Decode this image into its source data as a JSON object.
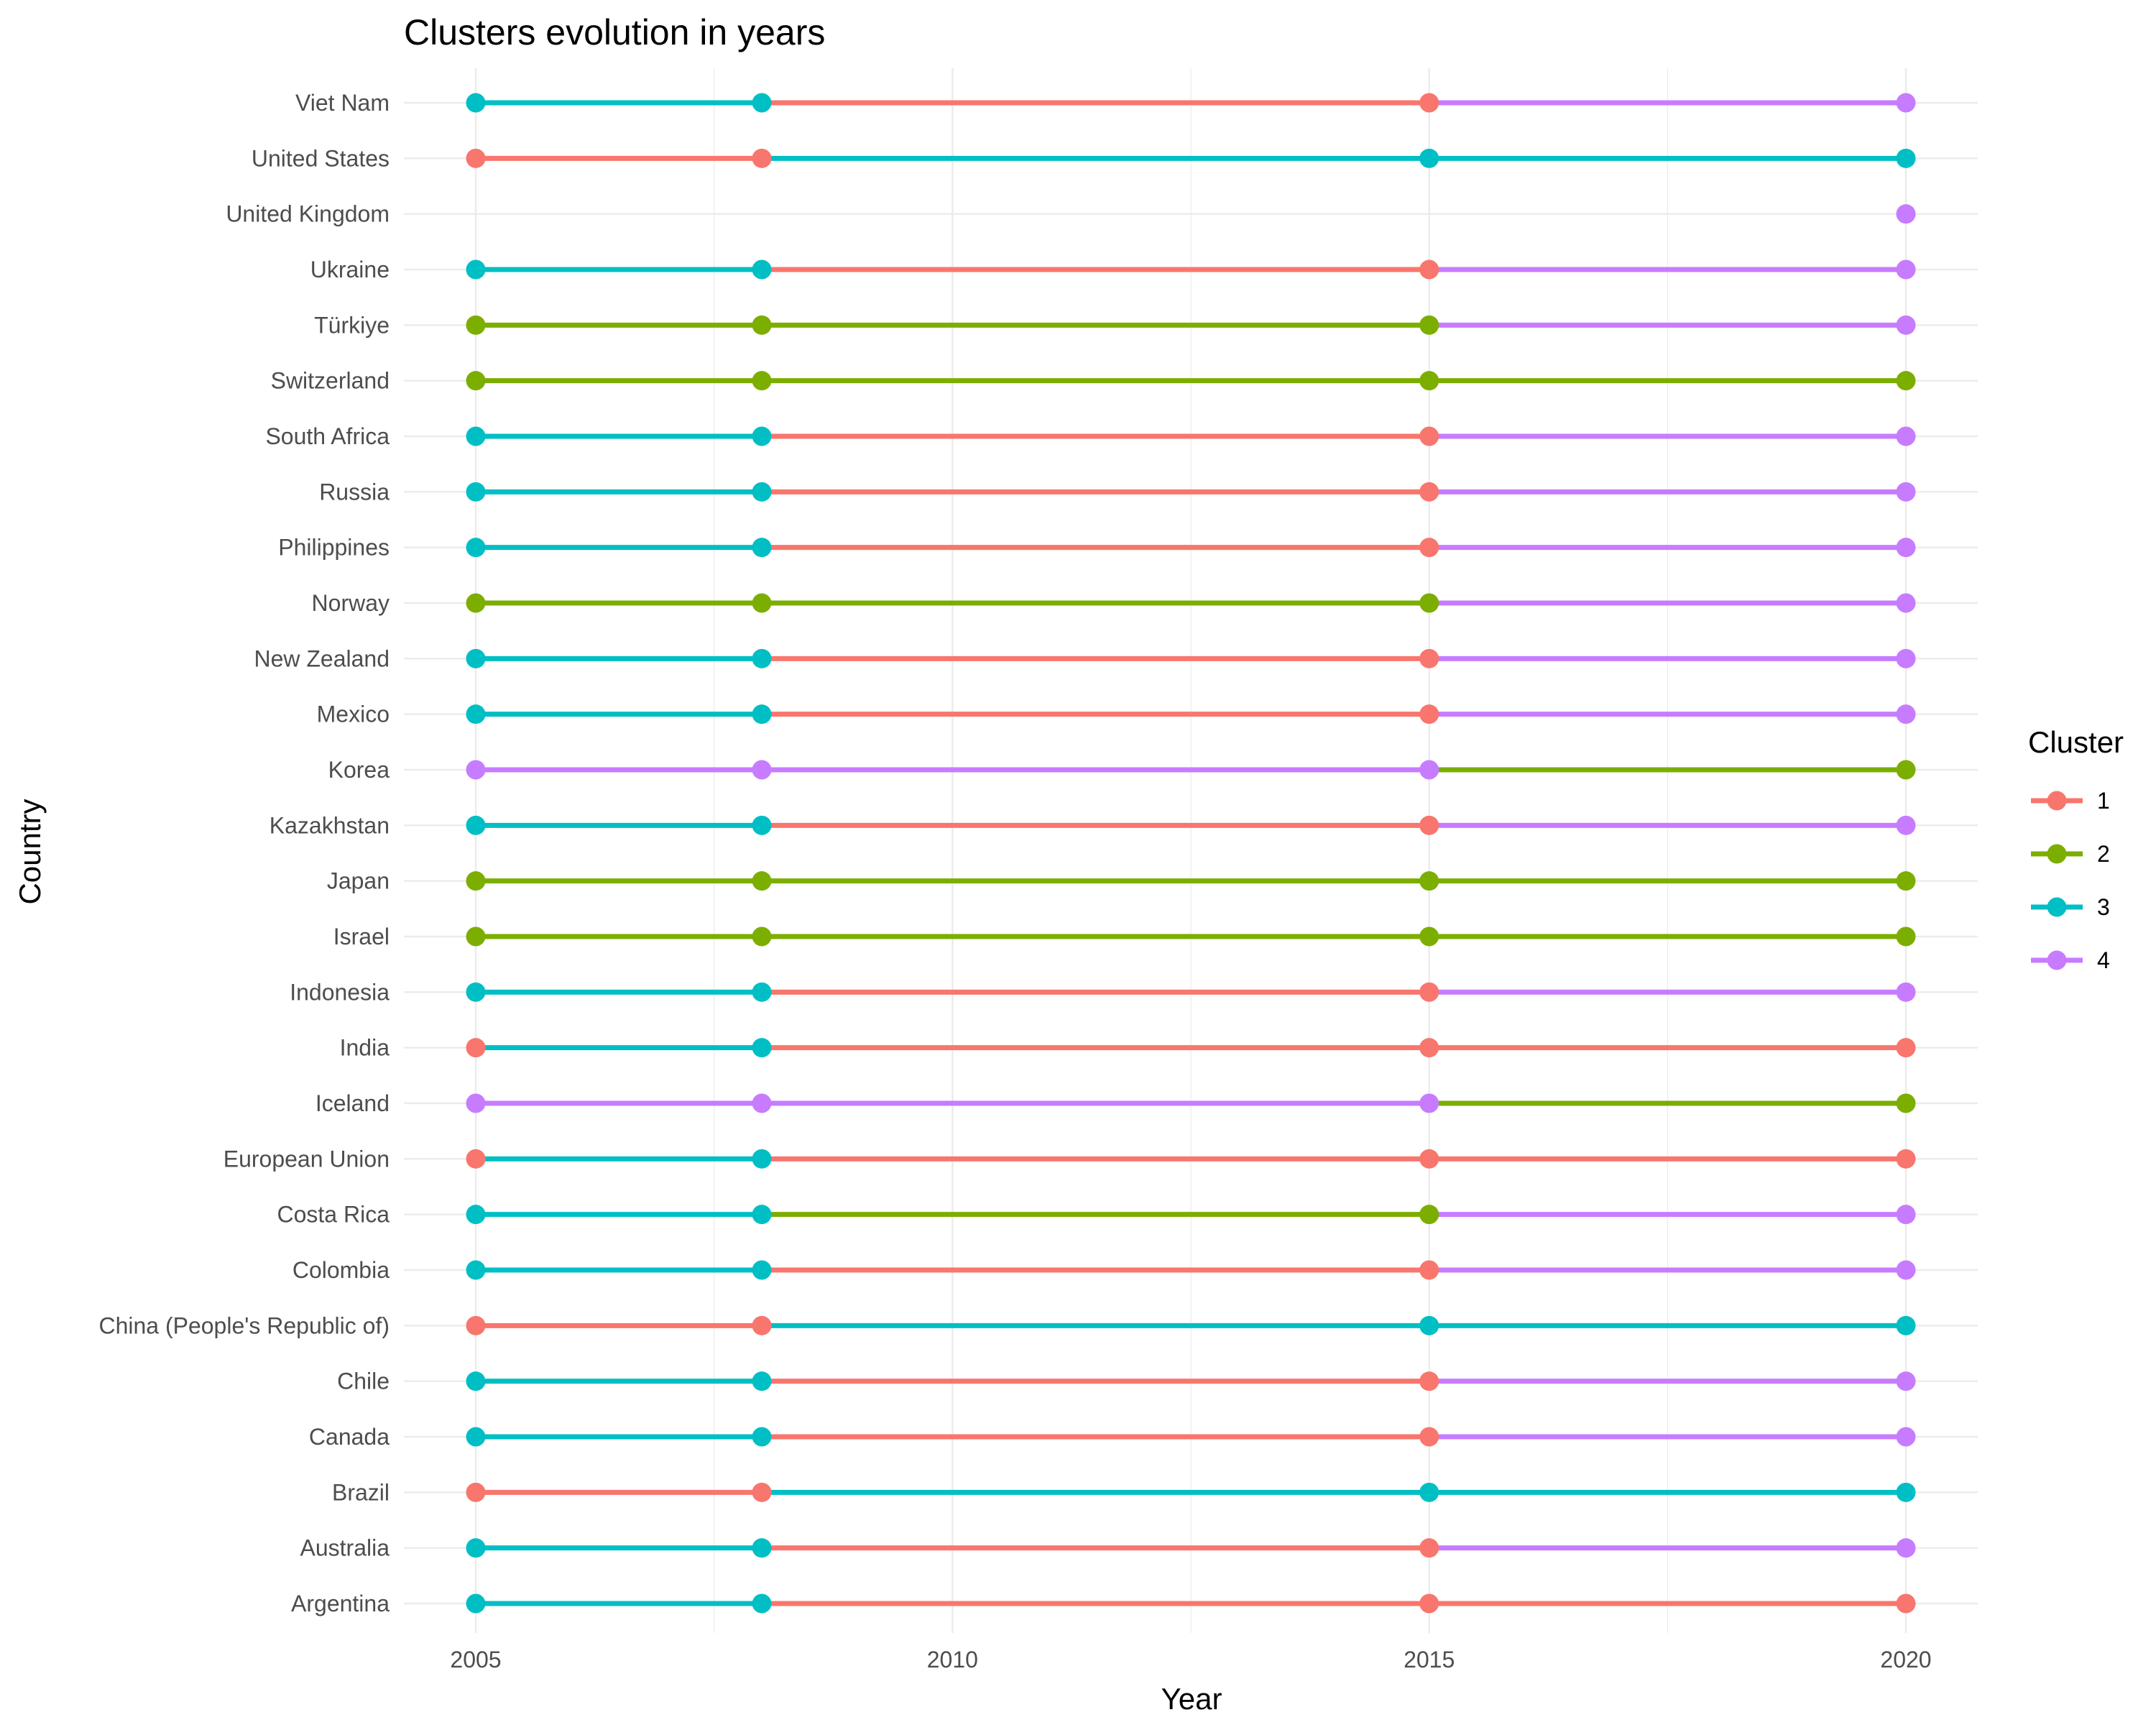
{
  "chart_data": {
    "type": "line",
    "title": "Clusters evolution in years",
    "xlabel": "Year",
    "ylabel": "Country",
    "xlim": [
      2004.5,
      2020.75
    ],
    "x_ticks": [
      2005,
      2010,
      2015,
      2020
    ],
    "x_tick_labels": [
      "2005",
      "2010",
      "2015",
      "2020"
    ],
    "years": [
      2005,
      2008,
      2015,
      2020
    ],
    "grid": true,
    "legend": {
      "title": "Cluster",
      "placement": "right",
      "entries": [
        {
          "label": "1",
          "cluster": 1
        },
        {
          "label": "2",
          "cluster": 2
        },
        {
          "label": "3",
          "cluster": 3
        },
        {
          "label": "4",
          "cluster": 4
        }
      ]
    },
    "colors": {
      "1": "#F8766D",
      "2": "#7CAE00",
      "3": "#00BFC4",
      "4": "#C77CFF"
    },
    "countries": [
      {
        "name": "Viet Nam",
        "clusters": [
          3,
          3,
          1,
          4
        ]
      },
      {
        "name": "United States",
        "clusters": [
          1,
          1,
          3,
          3
        ]
      },
      {
        "name": "United Kingdom",
        "clusters": [
          null,
          null,
          null,
          4
        ]
      },
      {
        "name": "Ukraine",
        "clusters": [
          3,
          3,
          1,
          4
        ]
      },
      {
        "name": "Türkiye",
        "clusters": [
          2,
          2,
          2,
          4
        ]
      },
      {
        "name": "Switzerland",
        "clusters": [
          2,
          2,
          2,
          2
        ]
      },
      {
        "name": "South Africa",
        "clusters": [
          3,
          3,
          1,
          4
        ]
      },
      {
        "name": "Russia",
        "clusters": [
          3,
          3,
          1,
          4
        ]
      },
      {
        "name": "Philippines",
        "clusters": [
          3,
          3,
          1,
          4
        ]
      },
      {
        "name": "Norway",
        "clusters": [
          2,
          2,
          2,
          4
        ]
      },
      {
        "name": "New Zealand",
        "clusters": [
          3,
          3,
          1,
          4
        ]
      },
      {
        "name": "Mexico",
        "clusters": [
          3,
          3,
          1,
          4
        ]
      },
      {
        "name": "Korea",
        "clusters": [
          4,
          4,
          4,
          2
        ]
      },
      {
        "name": "Kazakhstan",
        "clusters": [
          3,
          3,
          1,
          4
        ]
      },
      {
        "name": "Japan",
        "clusters": [
          2,
          2,
          2,
          2
        ]
      },
      {
        "name": "Israel",
        "clusters": [
          2,
          2,
          2,
          2
        ]
      },
      {
        "name": "Indonesia",
        "clusters": [
          3,
          3,
          1,
          4
        ]
      },
      {
        "name": "India",
        "clusters": [
          1,
          3,
          1,
          1
        ]
      },
      {
        "name": "Iceland",
        "clusters": [
          4,
          4,
          4,
          2
        ]
      },
      {
        "name": "European Union",
        "clusters": [
          1,
          3,
          1,
          1
        ]
      },
      {
        "name": "Costa Rica",
        "clusters": [
          3,
          3,
          2,
          4
        ]
      },
      {
        "name": "Colombia",
        "clusters": [
          3,
          3,
          1,
          4
        ]
      },
      {
        "name": "China (People's Republic of)",
        "clusters": [
          1,
          1,
          3,
          3
        ]
      },
      {
        "name": "Chile",
        "clusters": [
          3,
          3,
          1,
          4
        ]
      },
      {
        "name": "Canada",
        "clusters": [
          3,
          3,
          1,
          4
        ]
      },
      {
        "name": "Brazil",
        "clusters": [
          1,
          1,
          3,
          3
        ]
      },
      {
        "name": "Australia",
        "clusters": [
          3,
          3,
          1,
          4
        ]
      },
      {
        "name": "Argentina",
        "clusters": [
          3,
          3,
          1,
          1
        ]
      }
    ]
  }
}
